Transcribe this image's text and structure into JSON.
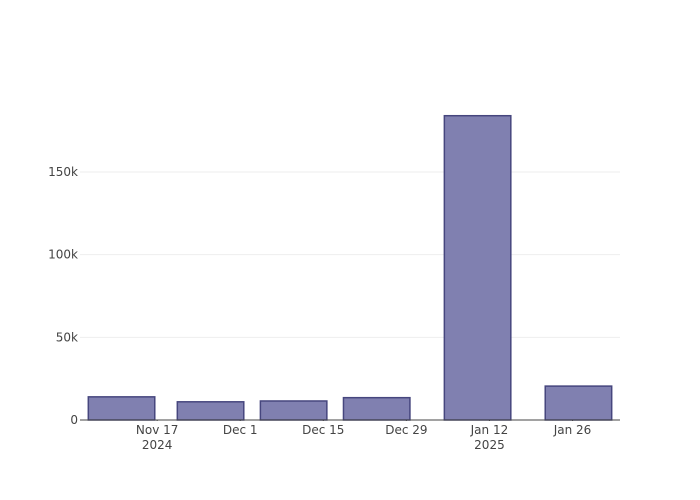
{
  "chart_data": {
    "type": "bar",
    "x": [
      "2024-11-11",
      "2024-11-26",
      "2024-12-10",
      "2024-12-24",
      "2025-01-10",
      "2025-01-27"
    ],
    "values": [
      14000,
      11000,
      11500,
      13500,
      184000,
      20500
    ],
    "color": "#8080b0",
    "edge_color": "#46467e",
    "xlim": [
      "2024-11-04",
      "2025-02-03"
    ],
    "xticks": [
      {
        "value": "2024-11-17",
        "label": "Nov 17\n2024"
      },
      {
        "value": "2024-12-01",
        "label": "Dec 1"
      },
      {
        "value": "2024-12-15",
        "label": "Dec 15"
      },
      {
        "value": "2024-12-29",
        "label": "Dec 29"
      },
      {
        "value": "2025-01-12",
        "label": "Jan 12\n2025"
      },
      {
        "value": "2025-01-26",
        "label": "Jan 26"
      }
    ],
    "ylim": [
      0,
      193500
    ],
    "yticks": [
      0,
      {
        "value": 50000,
        "label": "50k"
      },
      {
        "value": 100000,
        "label": "100k"
      },
      {
        "value": 150000,
        "label": "150k"
      }
    ],
    "grid": true
  }
}
